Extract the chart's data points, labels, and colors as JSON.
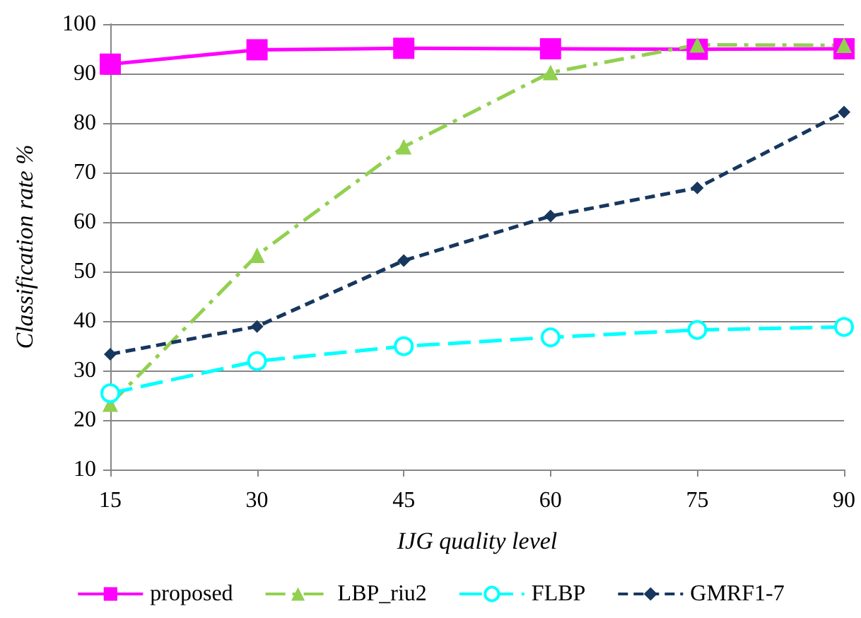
{
  "chart_data": {
    "type": "line",
    "xlabel": "IJG quality level",
    "ylabel": "Classification rate %",
    "x": [
      15,
      30,
      45,
      60,
      75,
      90
    ],
    "series": [
      {
        "name": "proposed",
        "color": "#ff00ff",
        "marker": "square",
        "line_style": "solid",
        "values": [
          91.9,
          94.8,
          95.1,
          95,
          94.9,
          95
        ]
      },
      {
        "name": "LBP_riu2",
        "color": "#92d050",
        "marker": "triangle",
        "line_style": "dashdot",
        "values": [
          23.2,
          53.3,
          75.2,
          90.2,
          95.8,
          95.7
        ]
      },
      {
        "name": "FLBP",
        "color": "#00ffff",
        "marker": "circle",
        "line_style": "longdash",
        "values": [
          25.4,
          31.9,
          34.9,
          36.7,
          38.2,
          38.8
        ]
      },
      {
        "name": "GMRF1-7",
        "color": "#17375e",
        "marker": "diamond",
        "line_style": "dashed",
        "values": [
          33.3,
          38.9,
          52.2,
          61.2,
          66.9,
          82.2
        ]
      }
    ],
    "xlim": [
      15,
      90
    ],
    "xticks": [
      15,
      30,
      45,
      60,
      75,
      90
    ],
    "ylim": [
      10,
      100
    ],
    "yticks": [
      10,
      20,
      30,
      40,
      50,
      60,
      70,
      80,
      90,
      100
    ],
    "grid": "y",
    "legend": "bottom"
  }
}
